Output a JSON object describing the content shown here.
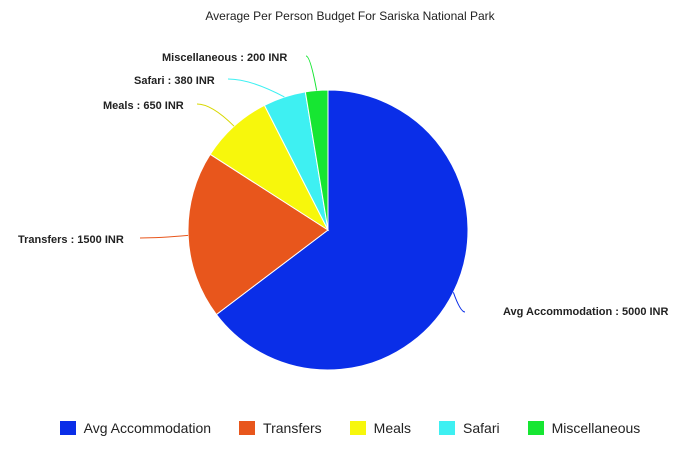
{
  "chart_data": {
    "type": "pie",
    "title": "Average Per Person Budget For Sariska National Park",
    "categories": [
      "Avg Accommodation",
      "Transfers",
      "Meals",
      "Safari",
      "Miscellaneous"
    ],
    "values": [
      5000,
      1500,
      650,
      380,
      200
    ],
    "unit": "INR",
    "data_labels": [
      "Avg Accommodation : 5000 INR",
      "Transfers : 1500 INR",
      "Meals : 650 INR",
      "Safari : 380 INR",
      "Miscellaneous : 200 INR"
    ],
    "colors": [
      "#0a2ee8",
      "#e8561c",
      "#f7f70c",
      "#3ef0f2",
      "#16e632"
    ],
    "legend_position": "bottom"
  }
}
